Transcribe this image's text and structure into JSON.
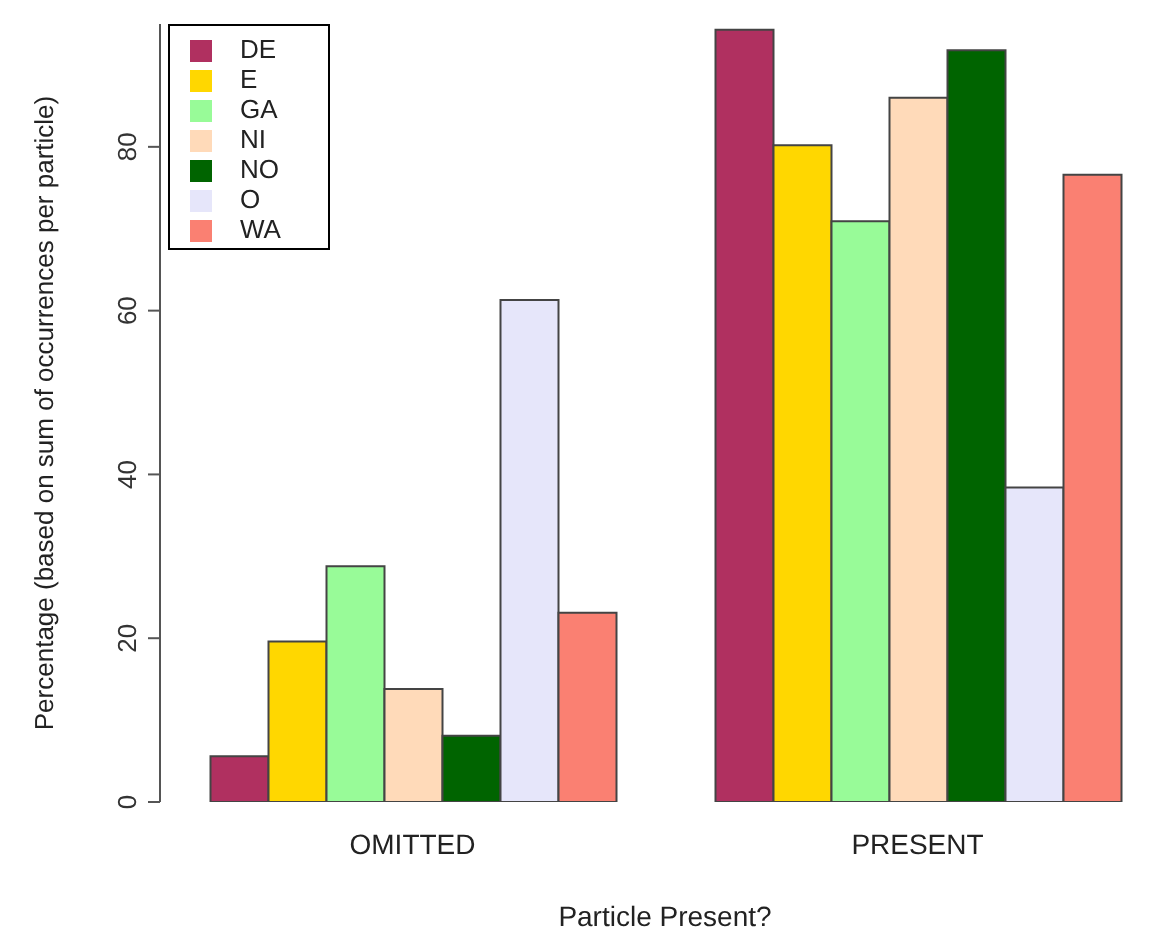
{
  "chart_data": {
    "type": "bar",
    "xlabel": "Particle Present?",
    "ylabel": "Percentage (based on sum of occurrences per particle)",
    "categories": [
      "OMITTED",
      "PRESENT"
    ],
    "series": [
      {
        "name": "DE",
        "color": "#b03060",
        "values": [
          5.6,
          94.3
        ]
      },
      {
        "name": "E",
        "color": "#ffd700",
        "values": [
          19.6,
          80.2
        ]
      },
      {
        "name": "GA",
        "color": "#98fb98",
        "values": [
          28.8,
          70.9
        ]
      },
      {
        "name": "NI",
        "color": "#ffdab9",
        "values": [
          13.8,
          86.0
        ]
      },
      {
        "name": "NO",
        "color": "#006400",
        "values": [
          8.1,
          91.8
        ]
      },
      {
        "name": "O",
        "color": "#e6e6fa",
        "values": [
          61.3,
          38.4
        ]
      },
      {
        "name": "WA",
        "color": "#fa8072",
        "values": [
          23.1,
          76.6
        ]
      }
    ],
    "ylim": [
      0,
      95
    ],
    "yticks": [
      0,
      20,
      40,
      60,
      80
    ],
    "grid": false,
    "legend": "top left"
  }
}
